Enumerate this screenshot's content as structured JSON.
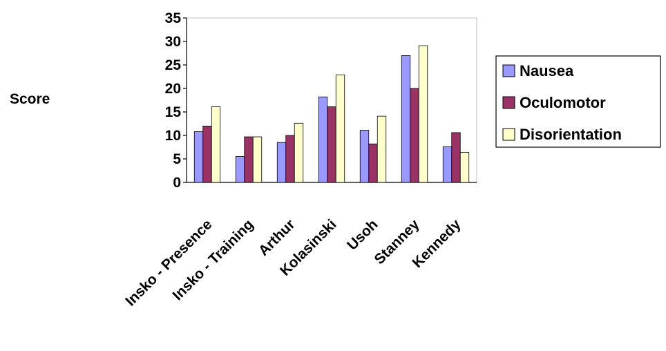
{
  "chart_data": {
    "type": "bar",
    "title": "",
    "xlabel": "",
    "ylabel": "Score",
    "ylim": [
      0,
      35
    ],
    "yticks": [
      0,
      5,
      10,
      15,
      20,
      25,
      30,
      35
    ],
    "grid": false,
    "legend_position": "right",
    "categories": [
      "Insko - Presence",
      "Insko - Training",
      "Arthur",
      "Kolasinski",
      "Usoh",
      "Stanney",
      "Kennedy"
    ],
    "series": [
      {
        "name": "Nausea",
        "color": "#9999FF",
        "values": [
          10.8,
          5.5,
          8.5,
          18.2,
          11.1,
          27.0,
          7.6
        ]
      },
      {
        "name": "Oculomotor",
        "color": "#993366",
        "values": [
          12.0,
          9.7,
          10.0,
          16.1,
          8.2,
          20.0,
          10.6
        ]
      },
      {
        "name": "Disorientation",
        "color": "#FFFFCC",
        "values": [
          16.1,
          9.7,
          12.6,
          22.9,
          14.1,
          29.1,
          6.4
        ]
      }
    ]
  }
}
